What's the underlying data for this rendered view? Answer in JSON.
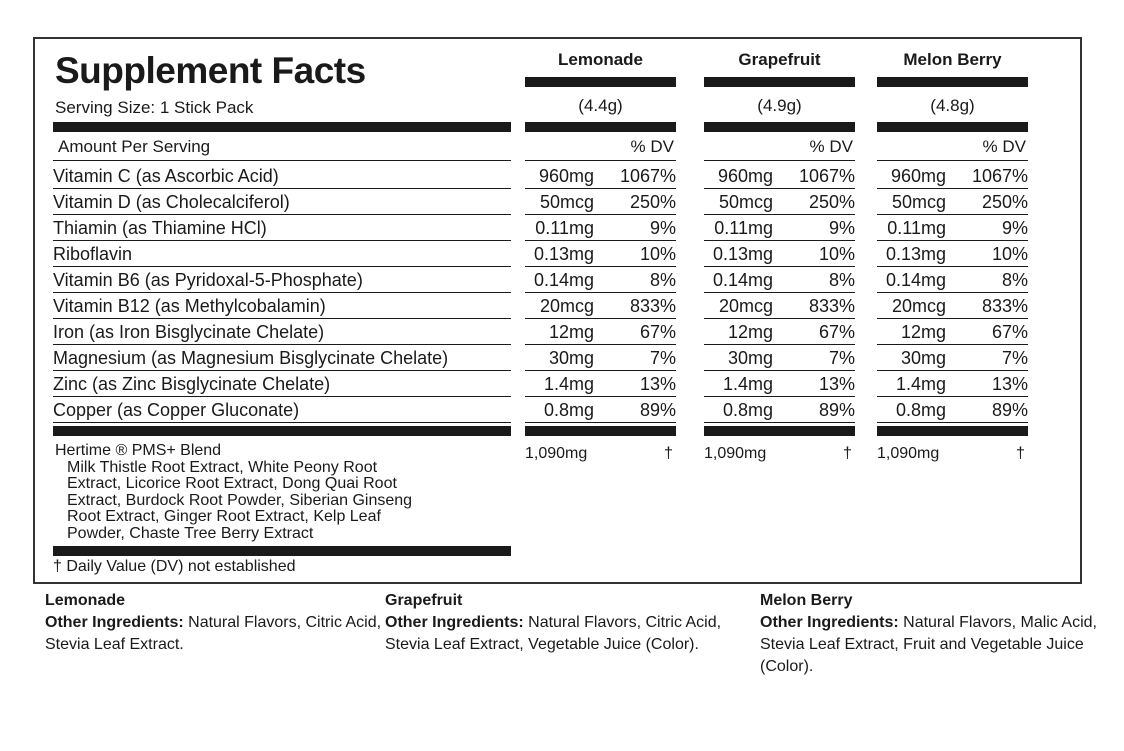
{
  "title": "Supplement Facts",
  "serving_size": "Serving Size: 1 Stick Pack",
  "amount_per_serving": "Amount Per Serving",
  "dv_header": "% DV",
  "flavors": [
    {
      "name": "Lemonade",
      "weight": "(4.4g)"
    },
    {
      "name": "Grapefruit",
      "weight": "(4.9g)"
    },
    {
      "name": "Melon Berry",
      "weight": "(4.8g)"
    }
  ],
  "nutrients": [
    {
      "name": "Vitamin C (as Ascorbic Acid)",
      "amount": "960mg",
      "dv": "1067%"
    },
    {
      "name": "Vitamin D (as Cholecalciferol)",
      "amount": "50mcg",
      "dv": "250%"
    },
    {
      "name": "Thiamin (as Thiamine HCl)",
      "amount": "0.11mg",
      "dv": "9%"
    },
    {
      "name": "Riboflavin",
      "amount": "0.13mg",
      "dv": "10%"
    },
    {
      "name": "Vitamin B6 (as Pyridoxal-5-Phosphate)",
      "amount": "0.14mg",
      "dv": "8%"
    },
    {
      "name": "Vitamin B12 (as Methylcobalamin)",
      "amount": "20mcg",
      "dv": "833%"
    },
    {
      "name": "Iron (as Iron Bisglycinate Chelate)",
      "amount": "12mg",
      "dv": "67%"
    },
    {
      "name": "Magnesium (as Magnesium Bisglycinate Chelate)",
      "amount": "30mg",
      "dv": "7%"
    },
    {
      "name": "Zinc (as Zinc Bisglycinate Chelate)",
      "amount": "1.4mg",
      "dv": "13%"
    },
    {
      "name": "Copper (as Copper Gluconate)",
      "amount": "0.8mg",
      "dv": "89%"
    }
  ],
  "blend": {
    "name": "Hertime ® PMS+ Blend",
    "ingredients": [
      "Milk Thistle Root Extract, White Peony Root",
      "Extract, Licorice Root Extract, Dong Quai Root",
      "Extract, Burdock Root Powder,  Siberian Ginseng",
      "Root Extract, Ginger Root Extract, Kelp Leaf",
      "Powder, Chaste Tree Berry Extract"
    ],
    "amount": "1,090mg",
    "dv": "†"
  },
  "footnote": "†  Daily Value (DV) not established",
  "other_ingredients": [
    {
      "flavor": "Lemonade",
      "label": "Other Ingredients:",
      "text": " Natural Flavors, Citric Acid, Stevia Leaf Extract."
    },
    {
      "flavor": "Grapefruit",
      "label": "Other Ingredients:",
      "text": " Natural Flavors, Citric Acid, Stevia Leaf Extract, Vegetable Juice (Color)."
    },
    {
      "flavor": "Melon Berry",
      "label": "Other Ingredients:",
      "text": " Natural Flavors, Malic Acid, Stevia Leaf Extract, Fruit and Vegetable Juice (Color)."
    }
  ]
}
